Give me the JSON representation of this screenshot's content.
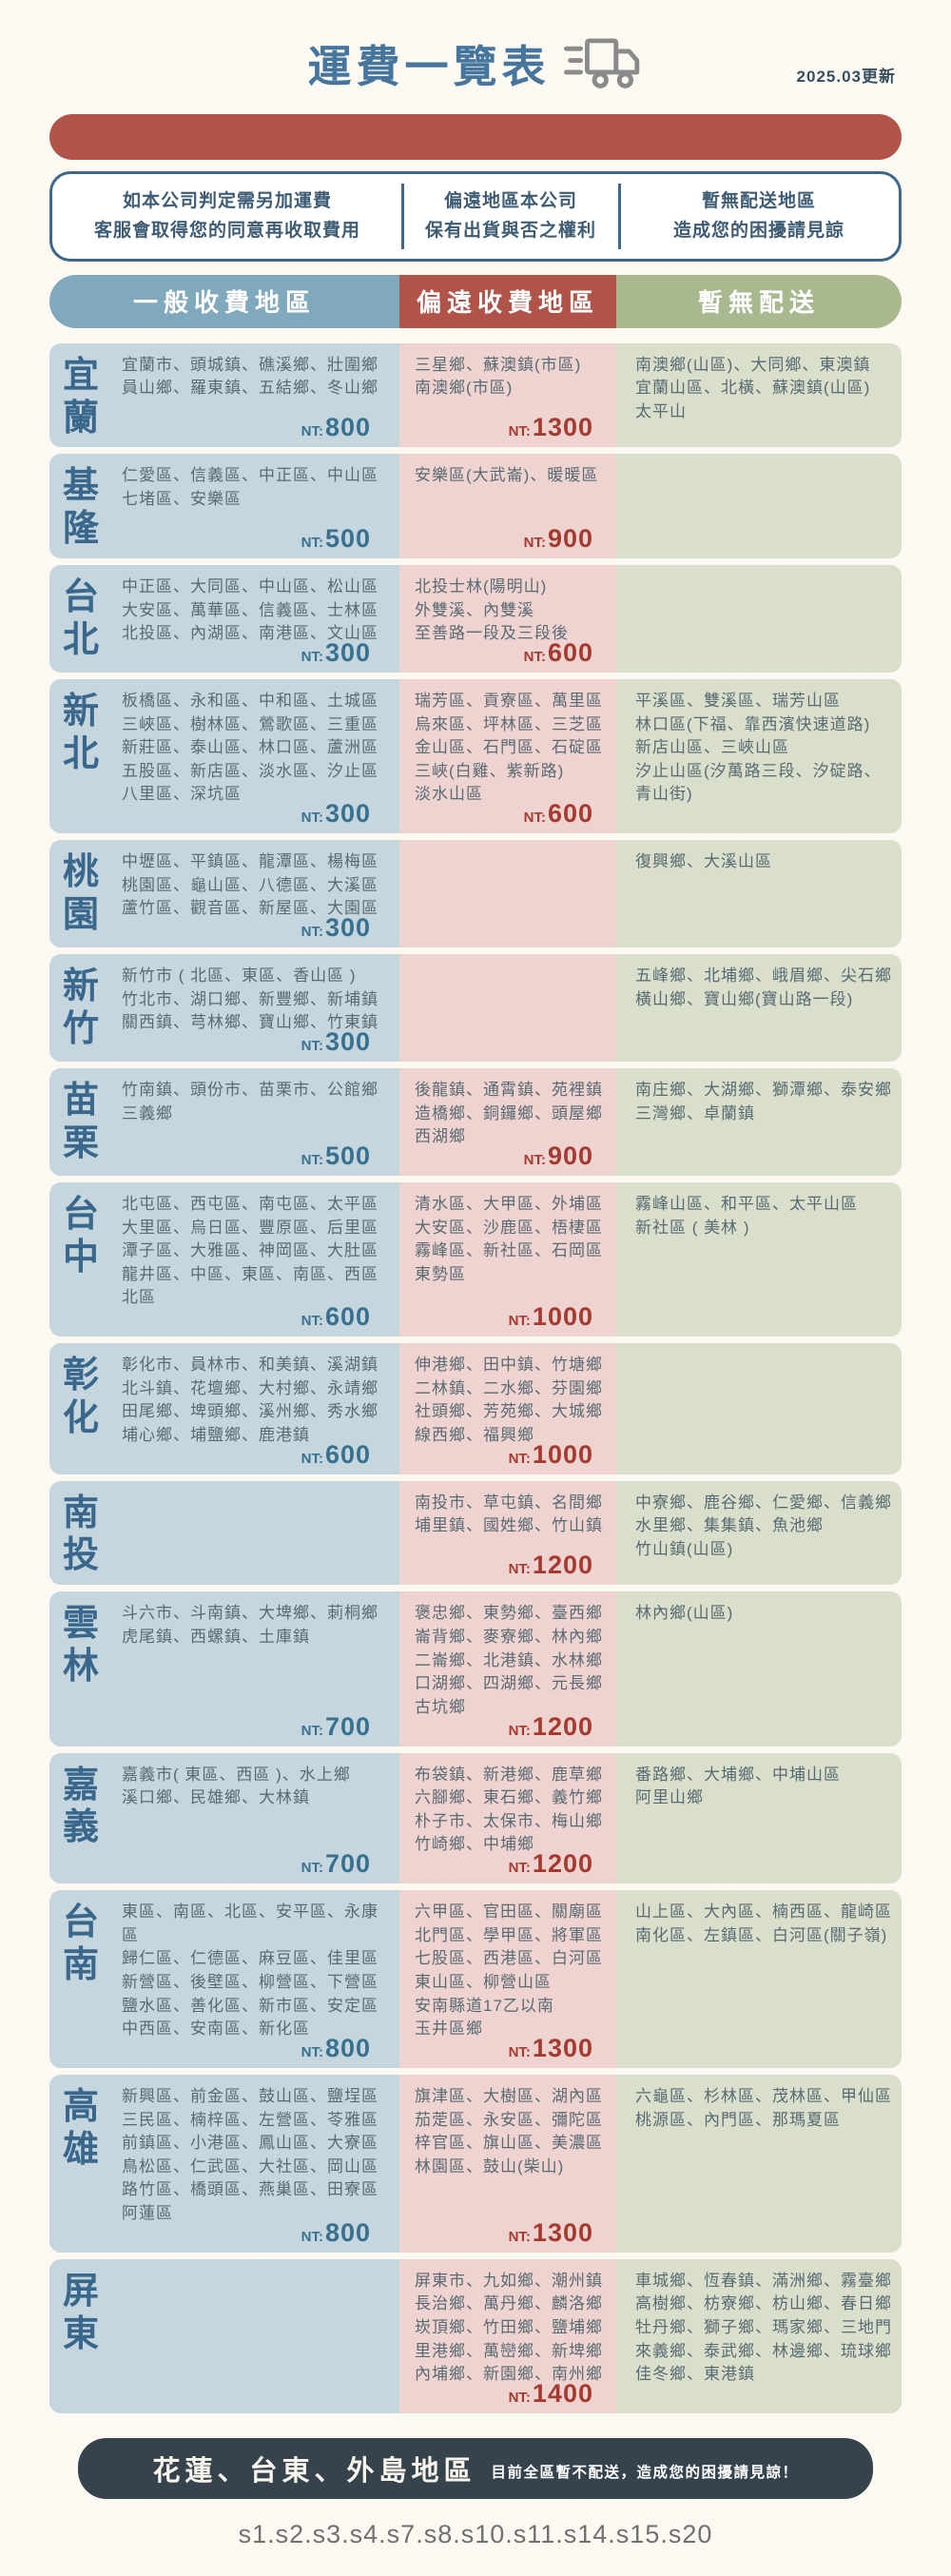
{
  "page": {
    "title": "運費一覽表",
    "updated": "2025.03更新",
    "footer_region": "花蓮、台東、外島地區",
    "footer_note": "目前全區暫不配送，造成您的困擾請見諒！",
    "bottom_code": "s1.s2.s3.s4.s7.s8.s10.s11.s14.s15.s20"
  },
  "labels": {
    "price_prefix": "NT:"
  },
  "notes": [
    {
      "line1": "如本公司判定需另加運費",
      "line2": "客服會取得您的同意再收取費用"
    },
    {
      "line1": "偏遠地區本公司",
      "line2": "保有出貨與否之權利"
    },
    {
      "line1": "暫無配送地區",
      "line2": "造成您的困擾請見諒"
    }
  ],
  "columns": {
    "general": "一般收費地區",
    "remote": "偏遠收費地區",
    "none": "暫無配送"
  },
  "colors": {
    "title_blue": "#46759d",
    "accent_blue": "#81a9bd",
    "accent_red": "#b05449",
    "accent_green": "#a9b88f",
    "row_blue_bg": "#c6d6df",
    "row_red_bg": "#eed3d0",
    "row_green_bg": "#d9dfcb",
    "region_label_blue": "#39688c",
    "price_blue": "#38708f",
    "price_red": "#a53a31",
    "note_border_blue": "#3e688a",
    "footer_bg": "#36434d",
    "truck_gray": "#8a8a8a"
  },
  "rows": [
    {
      "region": "宜蘭",
      "general": [
        "宜蘭市、頭城鎮、礁溪鄉、壯圍鄉",
        "員山鄉、羅東鎮、五結鄉、冬山鄉"
      ],
      "general_price": "800",
      "remote": [
        "三星鄉、蘇澳鎮(市區)",
        "南澳鄉(市區)"
      ],
      "remote_price": "1300",
      "none": [
        "南澳鄉(山區)、大同鄉、東澳鎮",
        "宜蘭山區、北橫、蘇澳鎮(山區)",
        "太平山"
      ]
    },
    {
      "region": "基隆",
      "general": [
        "仁愛區、信義區、中正區、中山區",
        "七堵區、安樂區"
      ],
      "general_price": "500",
      "remote": [
        "安樂區(大武崙)、暖暖區"
      ],
      "remote_price": "900",
      "none": []
    },
    {
      "region": "台北",
      "general": [
        "中正區、大同區、中山區、松山區",
        "大安區、萬華區、信義區、士林區",
        "北投區、內湖區、南港區、文山區"
      ],
      "general_price": "300",
      "remote": [
        "北投士林(陽明山)",
        "外雙溪、內雙溪",
        "至善路一段及三段後"
      ],
      "remote_price": "600",
      "none": []
    },
    {
      "region": "新北",
      "general": [
        "板橋區、永和區、中和區、土城區",
        "三峽區、樹林區、鶯歌區、三重區",
        "新莊區、泰山區、林口區、蘆洲區",
        "五股區、新店區、淡水區、汐止區",
        "八里區、深坑區"
      ],
      "general_price": "300",
      "remote": [
        "瑞芳區、貢寮區、萬里區",
        "烏來區、坪林區、三芝區",
        "金山區、石門區、石碇區",
        "三峽(白雞、紫新路)",
        "淡水山區"
      ],
      "remote_price": "600",
      "none": [
        "平溪區、雙溪區、瑞芳山區",
        "林口區(下福、靠西濱快速道路)",
        "新店山區、三峽山區",
        "汐止山區(汐萬路三段、汐碇路、",
        "青山街)"
      ]
    },
    {
      "region": "桃園",
      "general": [
        "中壢區、平鎮區、龍潭區、楊梅區",
        "桃園區、龜山區、八德區、大溪區",
        "蘆竹區、觀音區、新屋區、大園區"
      ],
      "general_price": "300",
      "remote": [],
      "none": [
        "復興鄉、大溪山區"
      ]
    },
    {
      "region": "新竹",
      "general": [
        "新竹市 ( 北區、東區、香山區 )",
        "竹北市、湖口鄉、新豐鄉、新埔鎮",
        "關西鎮、芎林鄉、寶山鄉、竹東鎮"
      ],
      "general_price": "300",
      "remote": [],
      "none": [
        "五峰鄉、北埔鄉、峨眉鄉、尖石鄉",
        "橫山鄉、寶山鄉(寶山路一段)"
      ]
    },
    {
      "region": "苗栗",
      "general": [
        "竹南鎮、頭份市、苗栗市、公館鄉",
        "三義鄉"
      ],
      "general_price": "500",
      "remote": [
        "後龍鎮、通霄鎮、苑裡鎮",
        "造橋鄉、銅鑼鄉、頭屋鄉",
        "西湖鄉"
      ],
      "remote_price": "900",
      "none": [
        "南庄鄉、大湖鄉、獅潭鄉、泰安鄉",
        "三灣鄉、卓蘭鎮"
      ]
    },
    {
      "region": "台中",
      "general": [
        "北屯區、西屯區、南屯區、太平區",
        "大里區、烏日區、豐原區、后里區",
        "潭子區、大雅區、神岡區、大肚區",
        "龍井區、中區、東區、南區、西區",
        "北區"
      ],
      "general_price": "600",
      "remote": [
        "清水區、大甲區、外埔區",
        "大安區、沙鹿區、梧棲區",
        "霧峰區、新社區、石岡區",
        "東勢區"
      ],
      "remote_price": "1000",
      "none": [
        "霧峰山區、和平區、太平山區",
        "新社區 ( 美林 )"
      ]
    },
    {
      "region": "彰化",
      "general": [
        "彰化市、員林市、和美鎮、溪湖鎮",
        "北斗鎮、花壇鄉、大村鄉、永靖鄉",
        "田尾鄉、埤頭鄉、溪州鄉、秀水鄉",
        "埔心鄉、埔鹽鄉、鹿港鎮"
      ],
      "general_price": "600",
      "remote": [
        "伸港鄉、田中鎮、竹塘鄉",
        "二林鎮、二水鄉、芬園鄉",
        "社頭鄉、芳苑鄉、大城鄉",
        "線西鄉、福興鄉"
      ],
      "remote_price": "1000",
      "none": []
    },
    {
      "region": "南投",
      "general": [],
      "remote": [
        "南投市、草屯鎮、名間鄉",
        "埔里鎮、國姓鄉、竹山鎮"
      ],
      "remote_price": "1200",
      "none": [
        "中寮鄉、鹿谷鄉、仁愛鄉、信義鄉",
        "水里鄉、集集鎮、魚池鄉",
        "竹山鎮(山區)"
      ]
    },
    {
      "region": "雲林",
      "general": [
        "斗六市、斗南鎮、大埤鄉、莿桐鄉",
        "虎尾鎮、西螺鎮、土庫鎮"
      ],
      "general_price": "700",
      "remote": [
        "褒忠鄉、東勢鄉、臺西鄉",
        "崙背鄉、麥寮鄉、林內鄉",
        "二崙鄉、北港鎮、水林鄉",
        "口湖鄉、四湖鄉、元長鄉",
        "古坑鄉"
      ],
      "remote_price": "1200",
      "none": [
        "林內鄉(山區)"
      ]
    },
    {
      "region": "嘉義",
      "general": [
        "嘉義市( 東區、西區 )、水上鄉",
        "溪口鄉、民雄鄉、大林鎮"
      ],
      "general_price": "700",
      "remote": [
        "布袋鎮、新港鄉、鹿草鄉",
        "六腳鄉、東石鄉、義竹鄉",
        "朴子市、太保市、梅山鄉",
        "竹崎鄉、中埔鄉"
      ],
      "remote_price": "1200",
      "none": [
        "番路鄉、大埔鄉、中埔山區",
        "阿里山鄉"
      ]
    },
    {
      "region": "台南",
      "general": [
        "東區、南區、北區、安平區、永康區",
        "歸仁區、仁德區、麻豆區、佳里區",
        "新營區、後壁區、柳營區、下營區",
        "鹽水區、善化區、新市區、安定區",
        "中西區、安南區、新化區"
      ],
      "general_price": "800",
      "remote": [
        "六甲區、官田區、關廟區",
        "北門區、學甲區、將軍區",
        "七股區、西港區、白河區",
        "東山區、柳營山區",
        "安南縣道17乙以南",
        "玉井區鄉"
      ],
      "remote_price": "1300",
      "none": [
        "山上區、大內區、楠西區、龍崎區",
        "南化區、左鎮區、白河區(關子嶺)"
      ]
    },
    {
      "region": "高雄",
      "general": [
        "新興區、前金區、鼓山區、鹽埕區",
        "三民區、楠梓區、左營區、苓雅區",
        "前鎮區、小港區、鳳山區、大寮區",
        "鳥松區、仁武區、大社區、岡山區",
        "路竹區、橋頭區、燕巢區、田寮區",
        "阿蓮區"
      ],
      "general_price": "800",
      "remote": [
        "旗津區、大樹區、湖內區",
        "茄萣區、永安區、彌陀區",
        "梓官區、旗山區、美濃區",
        "林園區、鼓山(柴山)"
      ],
      "remote_price": "1300",
      "none": [
        "六龜區、杉林區、茂林區、甲仙區",
        "桃源區、內門區、那瑪夏區"
      ]
    },
    {
      "region": "屏東",
      "general": [],
      "remote": [
        "屏東市、九如鄉、潮州鎮",
        "長治鄉、萬丹鄉、麟洛鄉",
        "崁頂鄉、竹田鄉、鹽埔鄉",
        "里港鄉、萬巒鄉、新埤鄉",
        "內埔鄉、新園鄉、南州鄉"
      ],
      "remote_price": "1400",
      "none": [
        "車城鄉、恆春鎮、滿洲鄉、霧臺鄉",
        "高樹鄉、枋寮鄉、枋山鄉、春日鄉",
        "牡丹鄉、獅子鄉、瑪家鄉、三地門",
        "來義鄉、泰武鄉、林邊鄉、琉球鄉",
        "佳冬鄉、東港鎮"
      ]
    }
  ]
}
